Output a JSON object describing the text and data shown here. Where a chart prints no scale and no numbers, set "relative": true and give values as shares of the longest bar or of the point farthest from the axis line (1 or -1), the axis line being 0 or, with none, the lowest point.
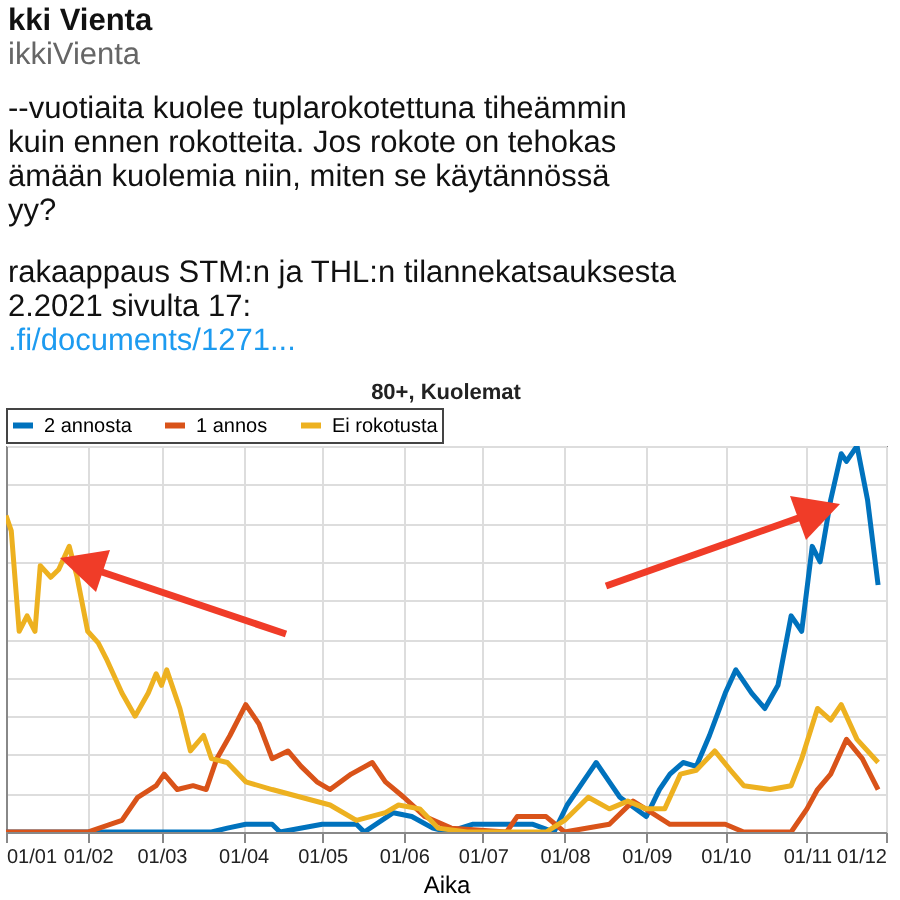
{
  "chart_data": {
    "type": "line",
    "title": "80+, Kuolemat",
    "xlabel": "Aika",
    "relative": true,
    "grid": true,
    "legend": "top",
    "line_style": "solid",
    "marker": "none",
    "annotations": [
      "kki Vienta",
      "ikkiVienta",
      "--vuotiaita kuolee tuplarokotettuna tiheämmin",
      "kuin ennen rokotteita. Jos rokote on tehokas",
      "ämään kuolemia niin, miten se käytännössä",
      "yy?",
      "rakaappaus STM:n ja THL:n tilannekatsauksesta",
      "2.2021 sivulta 17:",
      ".fi/documents/1271..."
    ],
    "xlim": [
      "--01-01",
      "--12-01"
    ],
    "xticks": [
      {
        "value": "--01-01",
        "label": "01/01"
      },
      {
        "value": "--02-01",
        "label": "01/02"
      },
      {
        "value": "--03-01",
        "label": "01/03"
      },
      {
        "value": "--04-01",
        "label": "01/04"
      },
      {
        "value": "--05-01",
        "label": "01/05"
      },
      {
        "value": "--06-01",
        "label": "01/06"
      },
      {
        "value": "--07-01",
        "label": "01/07"
      },
      {
        "value": "--08-01",
        "label": "01/08"
      },
      {
        "value": "--09-01",
        "label": "01/09"
      },
      {
        "value": "--10-01",
        "label": "01/10"
      },
      {
        "value": "--11-01",
        "label": "01/11"
      },
      {
        "value": "--12-01",
        "label": "01/12"
      }
    ],
    "series": [
      {
        "name": "2 annosta",
        "color": "#0072bd",
        "x": [
          "--01-01",
          "--03-20",
          "--03-26",
          "--04-02",
          "--04-12",
          "--04-15",
          "--05-01",
          "--05-14",
          "--05-17",
          "--05-28",
          "--06-04",
          "--06-12",
          "--06-18",
          "--06-27",
          "--07-20",
          "--07-28",
          "--08-02",
          "--08-10",
          "--08-13",
          "--08-18",
          "--08-22",
          "--08-28",
          "--09-01",
          "--09-06",
          "--09-10",
          "--09-15",
          "--09-20",
          "--09-25",
          "--10-01",
          "--10-05",
          "--10-11",
          "--10-16",
          "--10-21",
          "--10-26",
          "--10-30",
          "--11-03",
          "--11-06",
          "--11-10",
          "--11-14",
          "--11-16",
          "--11-20",
          "--11-24",
          "--11-28"
        ],
        "values": [
          0,
          0,
          0.01,
          0.02,
          0.02,
          0,
          0.02,
          0.02,
          0,
          0.05,
          0.04,
          0.01,
          0,
          0.02,
          0.02,
          0,
          0.07,
          0.15,
          0.18,
          0.13,
          0.09,
          0.06,
          0.04,
          0.11,
          0.15,
          0.18,
          0.17,
          0.25,
          0.36,
          0.42,
          0.36,
          0.32,
          0.38,
          0.56,
          0.52,
          0.74,
          0.7,
          0.86,
          0.98,
          0.96,
          1,
          0.86,
          0.64
        ]
      },
      {
        "name": "1 annos",
        "color": "#d95319",
        "x": [
          "--01-01",
          "--02-01",
          "--02-14",
          "--02-20",
          "--02-27",
          "--03-02",
          "--03-07",
          "--03-13",
          "--03-18",
          "--03-22",
          "--03-27",
          "--04-02",
          "--04-07",
          "--04-12",
          "--04-18",
          "--04-23",
          "--04-29",
          "--05-04",
          "--05-12",
          "--05-20",
          "--05-25",
          "--06-01",
          "--06-09",
          "--06-19",
          "--07-10",
          "--07-14",
          "--07-25",
          "--08-01",
          "--08-18",
          "--08-27",
          "--09-03",
          "--09-10",
          "--10-01",
          "--10-08",
          "--10-26",
          "--11-01",
          "--11-05",
          "--11-10",
          "--11-16",
          "--11-22",
          "--11-28"
        ],
        "values": [
          0,
          0,
          0.03,
          0.09,
          0.12,
          0.15,
          0.11,
          0.12,
          0.11,
          0.19,
          0.25,
          0.33,
          0.28,
          0.19,
          0.21,
          0.17,
          0.13,
          0.11,
          0.15,
          0.18,
          0.13,
          0.09,
          0.04,
          0.01,
          0,
          0.04,
          0.04,
          0,
          0.02,
          0.08,
          0.05,
          0.02,
          0.02,
          0,
          0,
          0.06,
          0.11,
          0.15,
          0.24,
          0.19,
          0.11
        ]
      },
      {
        "name": "Ei rokotusta",
        "color": "#edb120",
        "x": [
          "--01-01",
          "--01-03",
          "--01-06",
          "--01-09",
          "--01-12",
          "--01-14",
          "--01-18",
          "--01-21",
          "--01-25",
          "--01-28",
          "--02-01",
          "--02-05",
          "--02-08",
          "--02-14",
          "--02-19",
          "--02-24",
          "--02-27",
          "--03-01",
          "--03-03",
          "--03-08",
          "--03-12",
          "--03-17",
          "--03-20",
          "--03-26",
          "--04-02",
          "--04-12",
          "--04-23",
          "--05-04",
          "--05-14",
          "--05-25",
          "--05-30",
          "--06-07",
          "--06-14",
          "--06-25",
          "--07-25",
          "--08-01",
          "--08-10",
          "--08-18",
          "--08-25",
          "--09-01",
          "--09-08",
          "--09-14",
          "--09-20",
          "--09-27",
          "--10-03",
          "--10-08",
          "--10-18",
          "--10-26",
          "--10-30",
          "--11-05",
          "--11-10",
          "--11-14",
          "--11-20",
          "--11-28"
        ],
        "values": [
          0.82,
          0.78,
          0.52,
          0.56,
          0.52,
          0.69,
          0.66,
          0.68,
          0.74,
          0.66,
          0.52,
          0.49,
          0.45,
          0.36,
          0.3,
          0.36,
          0.41,
          0.38,
          0.42,
          0.32,
          0.21,
          0.25,
          0.19,
          0.18,
          0.13,
          0.11,
          0.09,
          0.07,
          0.03,
          0.05,
          0.07,
          0.06,
          0.01,
          0,
          0,
          0.03,
          0.09,
          0.06,
          0.08,
          0.06,
          0.06,
          0.15,
          0.16,
          0.21,
          0.16,
          0.12,
          0.11,
          0.12,
          0.19,
          0.32,
          0.29,
          0.33,
          0.24,
          0.18
        ]
      }
    ]
  }
}
